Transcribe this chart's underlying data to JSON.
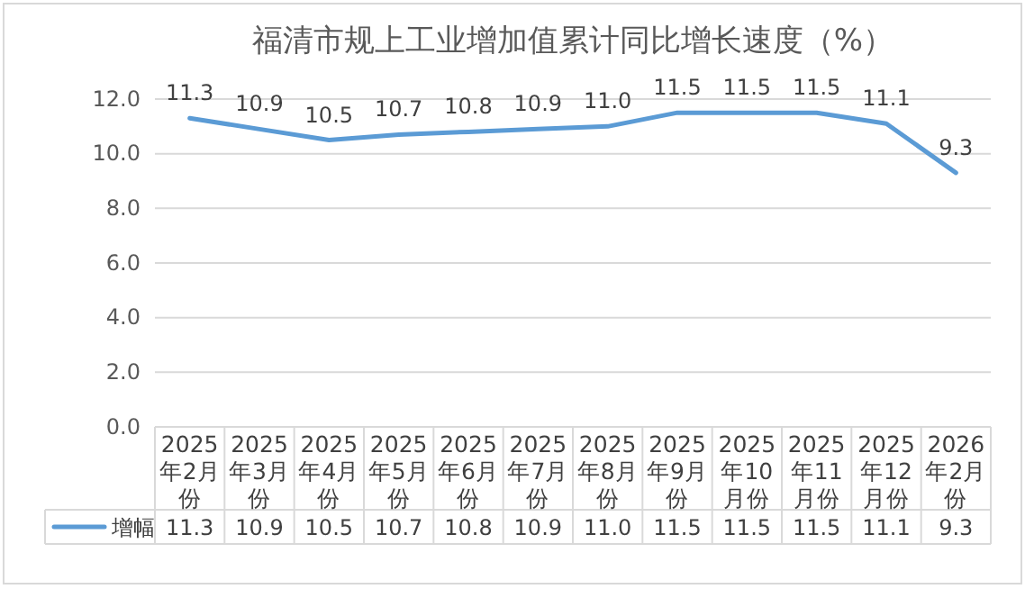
{
  "chart_data": {
    "type": "line",
    "title": "福清市规上工业增加值累计同比增长速度（%）",
    "categories": [
      "2025年2月份",
      "2025年3月份",
      "2025年4月份",
      "2025年5月份",
      "2025年6月份",
      "2025年7月份",
      "2025年8月份",
      "2025年9月份",
      "2025年10月份",
      "2025年11月份",
      "2025年12月份",
      "2026年2月份"
    ],
    "series": [
      {
        "name": "增幅",
        "color": "#5b9bd5",
        "values": [
          11.3,
          10.9,
          10.5,
          10.7,
          10.8,
          10.9,
          11.0,
          11.5,
          11.5,
          11.5,
          11.1,
          9.3
        ],
        "value_labels": [
          "11.3",
          "10.9",
          "10.5",
          "10.7",
          "10.8",
          "10.9",
          "11.0",
          "11.5",
          "11.5",
          "11.5",
          "11.1",
          "9.3"
        ]
      }
    ],
    "ylim": [
      0,
      12
    ],
    "yticks": [
      {
        "value": 0,
        "label": "0.0"
      },
      {
        "value": 2,
        "label": "2.0"
      },
      {
        "value": 4,
        "label": "4.0"
      },
      {
        "value": 6,
        "label": "6.0"
      },
      {
        "value": 8,
        "label": "8.0"
      },
      {
        "value": 10,
        "label": "10.0"
      },
      {
        "value": 12,
        "label": "12.0"
      }
    ],
    "grid": "y",
    "legend": "bottom",
    "marker": "none",
    "line_style": "solid"
  }
}
